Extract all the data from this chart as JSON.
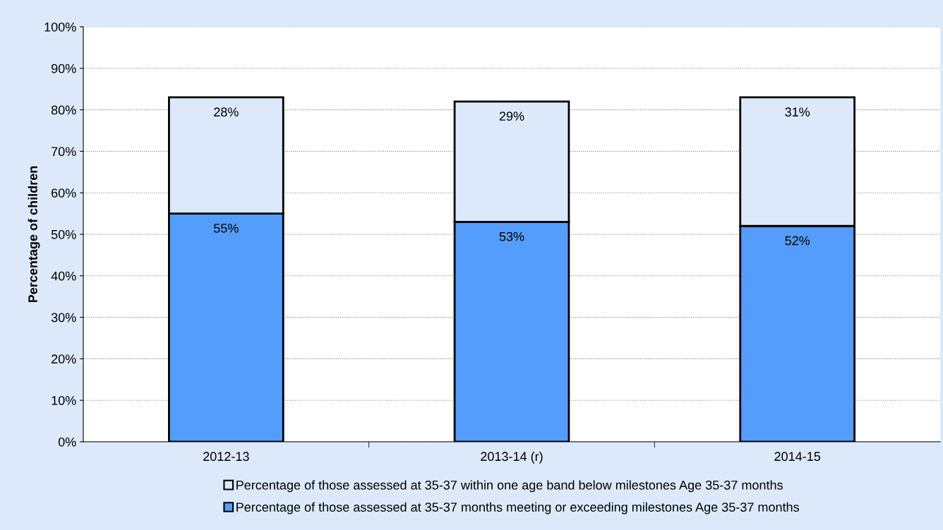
{
  "chart_data": {
    "type": "bar",
    "stacked": true,
    "ylabel": "Percentage of children",
    "categories": [
      "2012-13",
      "2013-14 (r)",
      "2014-15"
    ],
    "series": [
      {
        "name": "Percentage of those assessed at 35-37 months meeting or exceeding milestones Age 35-37 months",
        "color": "#559dfc",
        "values": [
          55,
          53,
          52
        ],
        "value_labels": [
          "55%",
          "53%",
          "52%"
        ]
      },
      {
        "name": "Percentage of those assessed at 35-37 within one age band below milestones Age 35-37 months",
        "color": "#dbe9fb",
        "values": [
          28,
          29,
          31
        ],
        "value_labels": [
          "28%",
          "29%",
          "31%"
        ]
      }
    ],
    "ylim": [
      0,
      100
    ],
    "yticks": [
      {
        "value": 0,
        "label": "0%"
      },
      {
        "value": 10,
        "label": "10%"
      },
      {
        "value": 20,
        "label": "20%"
      },
      {
        "value": 30,
        "label": "30%"
      },
      {
        "value": 40,
        "label": "40%"
      },
      {
        "value": 50,
        "label": "50%"
      },
      {
        "value": 60,
        "label": "60%"
      },
      {
        "value": 70,
        "label": "70%"
      },
      {
        "value": 80,
        "label": "80%"
      },
      {
        "value": 90,
        "label": "90%"
      },
      {
        "value": 100,
        "label": "100%"
      }
    ],
    "grid": "y",
    "legend": "bottom"
  }
}
